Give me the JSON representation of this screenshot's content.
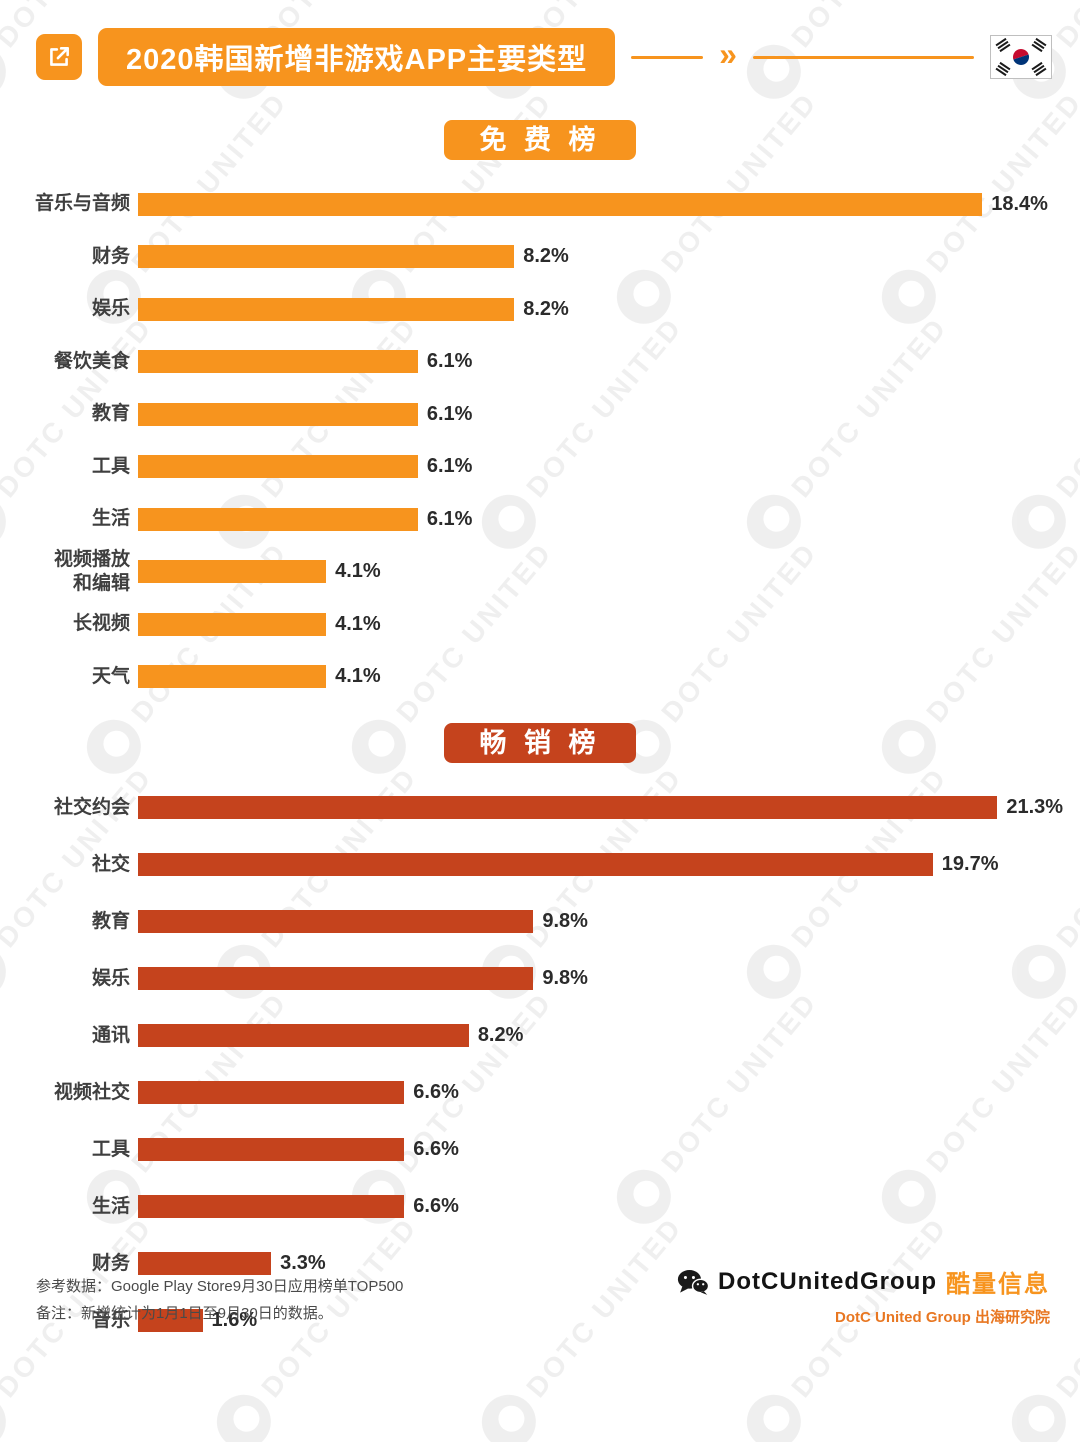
{
  "header": {
    "title": "2020韩国新增非游戏APP主要类型",
    "chevrons": "»"
  },
  "watermark": {
    "text": "DOTC UNITED"
  },
  "chart_data": [
    {
      "type": "bar",
      "orientation": "horizontal",
      "title": "免 费 榜",
      "bar_color": "#F7941E",
      "unit": "%",
      "xlim": [
        0,
        20.4
      ],
      "grid": false,
      "categories": [
        "音乐与音频",
        "财务",
        "娱乐",
        "餐饮美食",
        "教育",
        "工具",
        "生活",
        "视频播放\n和编辑",
        "长视频",
        "天气"
      ],
      "values": [
        18.4,
        8.2,
        8.2,
        6.1,
        6.1,
        6.1,
        6.1,
        4.1,
        4.1,
        4.1
      ]
    },
    {
      "type": "bar",
      "orientation": "horizontal",
      "title": "畅 销 榜",
      "bar_color": "#C5431D",
      "unit": "%",
      "xlim": [
        0,
        23.2
      ],
      "grid": false,
      "categories": [
        "社交约会",
        "社交",
        "教育",
        "娱乐",
        "通讯",
        "视频社交",
        "工具",
        "生活",
        "财务",
        "音乐"
      ],
      "values": [
        21.3,
        19.7,
        9.8,
        9.8,
        8.2,
        6.6,
        6.6,
        6.6,
        3.3,
        1.6
      ]
    }
  ],
  "footer": {
    "source": "参考数据：Google Play Store9月30日应用榜单TOP500",
    "note": "备注：新增统计为1月1日至9月30日的数据。",
    "brand": "DotCUnitedGroup",
    "brand_suffix": "酷量信息",
    "org": "DotC United Group 出海研究院"
  }
}
